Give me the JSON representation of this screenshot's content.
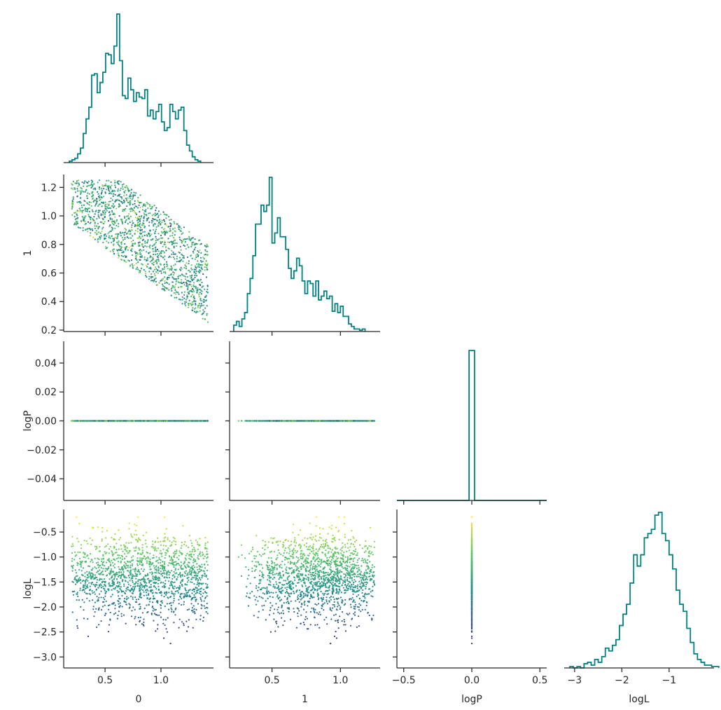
{
  "chart_data": {
    "type": "corner",
    "variables": [
      "0",
      "1",
      "logP",
      "logL"
    ],
    "colors": {
      "hist": "#008080",
      "axis": "#262626",
      "colormap": "viridis",
      "colormap_stops": [
        "#440154",
        "#3b528b",
        "#21918c",
        "#5ec962",
        "#fde725"
      ]
    },
    "ranges": {
      "0": [
        0.13,
        1.47
      ],
      "1": [
        0.19,
        1.29
      ],
      "logP": [
        -0.055,
        0.055
      ],
      "logL": [
        -3.22,
        -0.05
      ]
    },
    "hist_x_ranges": {
      "logP": [
        -0.55,
        0.55
      ],
      "logL": [
        -3.22,
        -0.05
      ]
    },
    "ticks": {
      "0": {
        "values": [
          0.5,
          1.0
        ],
        "labels": [
          "0.5",
          "1.0"
        ]
      },
      "1": {
        "values": [
          0.2,
          0.4,
          0.6,
          0.8,
          1.0,
          1.2
        ],
        "labels": [
          "0.2",
          "0.4",
          "0.6",
          "0.8",
          "1.0",
          "1.2"
        ]
      },
      "1x": {
        "values": [
          0.5,
          1.0
        ],
        "labels": [
          "0.5",
          "1.0"
        ]
      },
      "logP_y": {
        "values": [
          -0.04,
          -0.02,
          0.0,
          0.02,
          0.04
        ],
        "labels": [
          "−0.04",
          "−0.02",
          "0.00",
          "0.02",
          "0.04"
        ]
      },
      "logP_x": {
        "values": [
          -0.5,
          0.0,
          0.5
        ],
        "labels": [
          "−0.5",
          "0.0",
          "0.5"
        ]
      },
      "logL": {
        "values": [
          -3.0,
          -2.5,
          -2.0,
          -1.5,
          -1.0,
          -0.5
        ],
        "labels": [
          "−3.0",
          "−2.5",
          "−2.0",
          "−1.5",
          "−1.0",
          "−0.5"
        ]
      },
      "logL_x": {
        "values": [
          -3,
          -2,
          -1
        ],
        "labels": [
          "−3",
          "−2",
          "−1"
        ]
      }
    },
    "axis_labels": {
      "x": [
        "0",
        "1",
        "logP",
        "logL"
      ],
      "y": [
        "1",
        "logP",
        "logL"
      ]
    },
    "histograms": {
      "0": {
        "x0": 0.18,
        "bin_width": 0.025,
        "counts": [
          1,
          2,
          3,
          6,
          10,
          20,
          30,
          38,
          60,
          61,
          48,
          55,
          62,
          75,
          74,
          68,
          80,
          102,
          70,
          46,
          44,
          58,
          50,
          42,
          48,
          45,
          44,
          50,
          32,
          36,
          30,
          35,
          40,
          28,
          22,
          24,
          40,
          35,
          30,
          36,
          38,
          22,
          12,
          8,
          4,
          2,
          1
        ]
      },
      "1": {
        "x0": 0.22,
        "bin_width": 0.02,
        "counts": [
          5,
          8,
          4,
          10,
          15,
          30,
          42,
          60,
          85,
          85,
          100,
          95,
          100,
          122,
          70,
          78,
          90,
          75,
          75,
          65,
          50,
          42,
          48,
          58,
          52,
          40,
          30,
          40,
          38,
          28,
          40,
          25,
          28,
          32,
          26,
          28,
          16,
          22,
          15,
          20,
          12,
          12,
          6,
          4,
          2,
          2,
          1,
          2
        ]
      },
      "logP": {
        "bin_center": 0.0,
        "count": 1600
      },
      "logL": {
        "x0": -3.1,
        "bin_width": 0.075,
        "counts": [
          1,
          0,
          1,
          0,
          3,
          4,
          2,
          6,
          4,
          8,
          14,
          12,
          16,
          20,
          30,
          38,
          45,
          60,
          80,
          72,
          80,
          92,
          95,
          98,
          108,
          110,
          95,
          90,
          80,
          70,
          55,
          45,
          40,
          28,
          18,
          10,
          6,
          4,
          2,
          2,
          1,
          1
        ]
      }
    },
    "scatter": {
      "n_points": 1600,
      "description_free": true,
      "x0_range": [
        0.2,
        1.42
      ],
      "x1_range": [
        0.22,
        1.25
      ],
      "logL_range": [
        -3.1,
        -0.2
      ],
      "logP_value": 0.0
    }
  }
}
